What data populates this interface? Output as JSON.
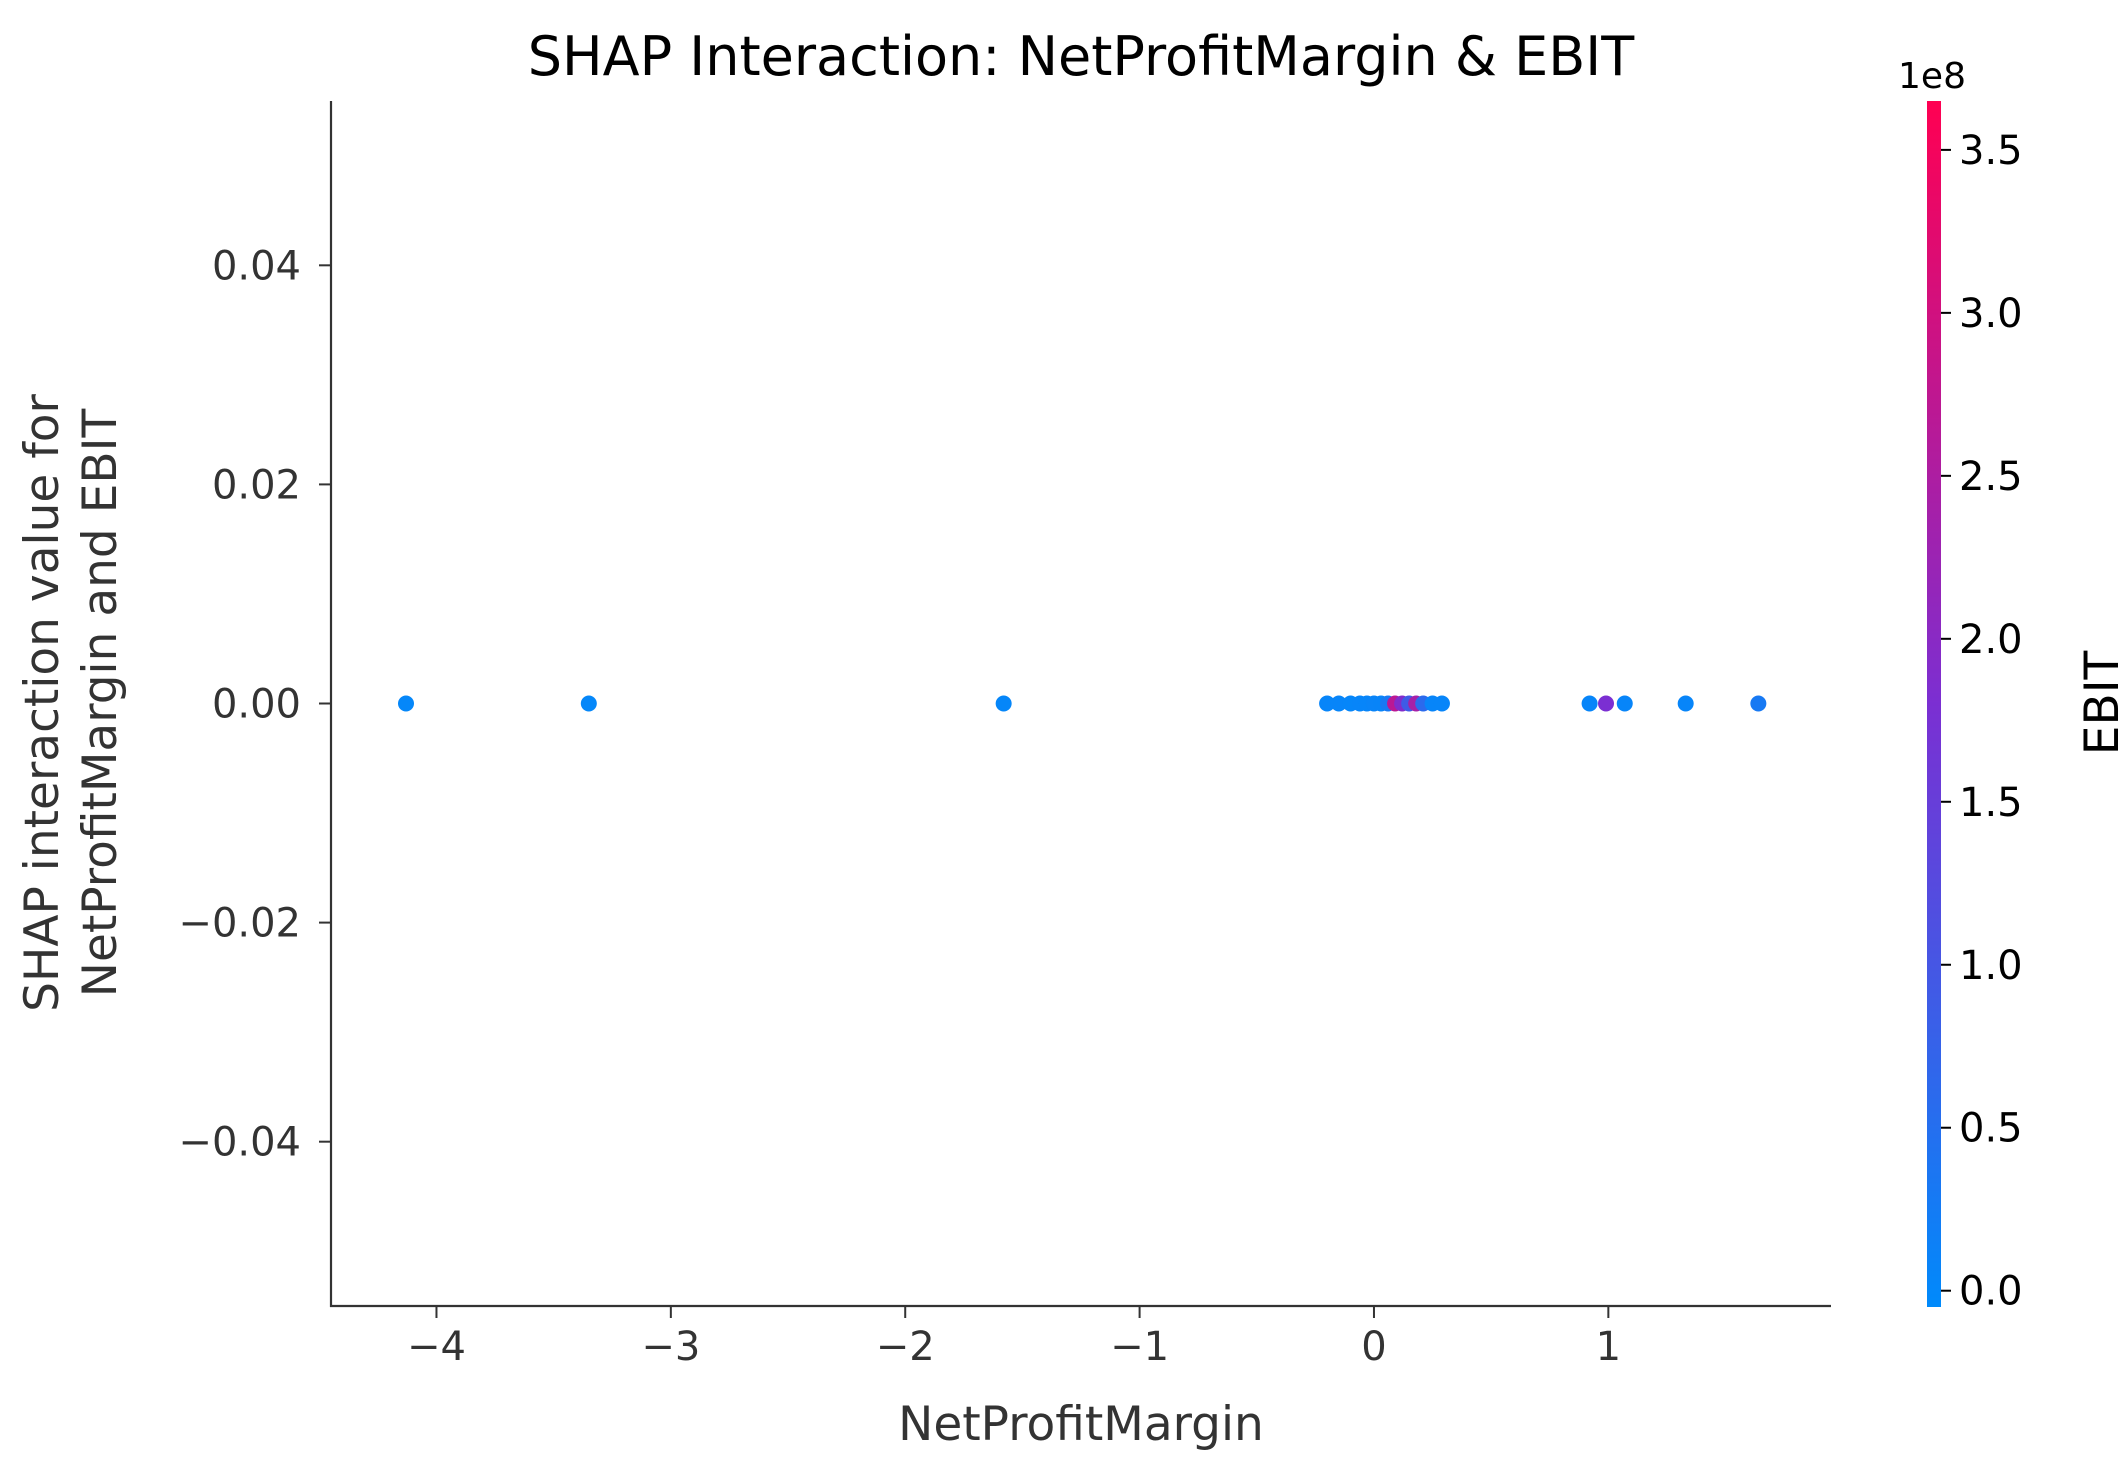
{
  "chart_data": {
    "type": "scatter",
    "title": "SHAP Interaction: NetProfitMargin & EBIT",
    "xlabel": "NetProfitMargin",
    "ylabel_lines": [
      "SHAP interaction value for",
      "NetProfitMargin and EBIT"
    ],
    "xlim": [
      -4.45,
      1.95
    ],
    "ylim": [
      -0.055,
      0.055
    ],
    "xticks": [
      {
        "value": -4,
        "label": "−4"
      },
      {
        "value": -3,
        "label": "−3"
      },
      {
        "value": -2,
        "label": "−2"
      },
      {
        "value": -1,
        "label": "−1"
      },
      {
        "value": 0,
        "label": "0"
      },
      {
        "value": 1,
        "label": "1"
      }
    ],
    "yticks": [
      {
        "value": 0.04,
        "label": "0.04"
      },
      {
        "value": 0.02,
        "label": "0.02"
      },
      {
        "value": 0.0,
        "label": "0.00"
      },
      {
        "value": -0.02,
        "label": "−0.02"
      },
      {
        "value": -0.04,
        "label": "−0.04"
      }
    ],
    "grid": false,
    "colorbar": {
      "label": "EBIT",
      "offset_label": "1e8",
      "range": [
        -0.05,
        3.65
      ],
      "ticks": [
        {
          "value": 0.0,
          "label": "0.0"
        },
        {
          "value": 0.5,
          "label": "0.5"
        },
        {
          "value": 1.0,
          "label": "1.0"
        },
        {
          "value": 1.5,
          "label": "1.5"
        },
        {
          "value": 2.0,
          "label": "2.0"
        },
        {
          "value": 2.5,
          "label": "2.5"
        },
        {
          "value": 3.0,
          "label": "3.0"
        },
        {
          "value": 3.5,
          "label": "3.5"
        }
      ],
      "color_low": "#008afb",
      "color_mid": "#7b2fd2",
      "color_high": "#ff0052"
    },
    "points": [
      {
        "x": -4.13,
        "y": 0,
        "c": 0.02
      },
      {
        "x": -3.35,
        "y": 0,
        "c": 0.02
      },
      {
        "x": -1.58,
        "y": 0,
        "c": 0.03
      },
      {
        "x": -0.2,
        "y": 0,
        "c": 0.05
      },
      {
        "x": -0.15,
        "y": 0,
        "c": 0.05
      },
      {
        "x": -0.1,
        "y": 0,
        "c": 0.04
      },
      {
        "x": -0.06,
        "y": 0,
        "c": 0.06
      },
      {
        "x": -0.03,
        "y": 0,
        "c": 0.05
      },
      {
        "x": 0.0,
        "y": 0,
        "c": 0.08
      },
      {
        "x": 0.03,
        "y": 0,
        "c": 0.07
      },
      {
        "x": 0.06,
        "y": 0,
        "c": 0.3
      },
      {
        "x": 0.09,
        "y": 0,
        "c": 2.7
      },
      {
        "x": 0.12,
        "y": 0,
        "c": 1.9
      },
      {
        "x": 0.15,
        "y": 0,
        "c": 0.9
      },
      {
        "x": 0.18,
        "y": 0,
        "c": 2.4
      },
      {
        "x": 0.21,
        "y": 0,
        "c": 0.6
      },
      {
        "x": 0.25,
        "y": 0,
        "c": 0.06
      },
      {
        "x": 0.29,
        "y": 0,
        "c": 0.05
      },
      {
        "x": 0.92,
        "y": 0,
        "c": 0.06
      },
      {
        "x": 0.99,
        "y": 0,
        "c": 1.8
      },
      {
        "x": 1.07,
        "y": 0,
        "c": 0.05
      },
      {
        "x": 1.33,
        "y": 0,
        "c": 0.05
      },
      {
        "x": 1.64,
        "y": 0,
        "c": 0.3
      }
    ]
  }
}
